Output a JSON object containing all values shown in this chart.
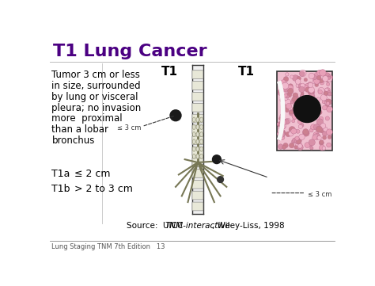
{
  "background_color": "#ffffff",
  "title": "T1 Lung Cancer",
  "title_color": "#4B0082",
  "title_fontsize": 16,
  "desc_lines": [
    "Tumor 3 cm or less",
    "in size, surrounded",
    "by lung or visceral",
    "pleura; no invasion",
    "more  proximal",
    "than a lobar",
    "bronchus"
  ],
  "desc_fontsize": 8.5,
  "desc_color": "#000000",
  "subtype_lines": [
    [
      "T1a",
      "≤ 2 cm"
    ],
    [
      "T1b",
      "> 2 to 3 cm"
    ]
  ],
  "subtype_fontsize": 9,
  "t1_label_fontsize": 11,
  "source_fontsize": 7.5,
  "footer_text": "Lung Staging TNM 7th Edition   13",
  "footer_fontsize": 6,
  "lung_pink": "#f5b8c8",
  "lung_pink_light": "#fde8ee",
  "lung_edge": "#222222",
  "tumor_color": "#1a1a1a",
  "bronchi_color": "#ddddcc",
  "bronchi_edge": "#555555",
  "inset_bg": "#f0c0d0",
  "inset_edge": "#333333",
  "annotation_color": "#333333",
  "annotation_fontsize": 6
}
